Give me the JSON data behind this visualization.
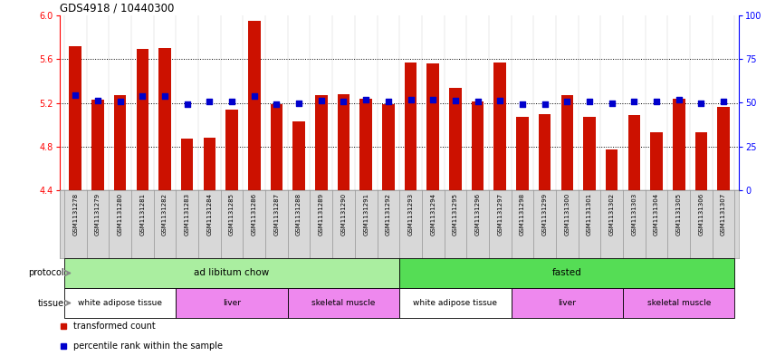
{
  "title": "GDS4918 / 10440300",
  "samples": [
    "GSM1131278",
    "GSM1131279",
    "GSM1131280",
    "GSM1131281",
    "GSM1131282",
    "GSM1131283",
    "GSM1131284",
    "GSM1131285",
    "GSM1131286",
    "GSM1131287",
    "GSM1131288",
    "GSM1131289",
    "GSM1131290",
    "GSM1131291",
    "GSM1131292",
    "GSM1131293",
    "GSM1131294",
    "GSM1131295",
    "GSM1131296",
    "GSM1131297",
    "GSM1131298",
    "GSM1131299",
    "GSM1131300",
    "GSM1131301",
    "GSM1131302",
    "GSM1131303",
    "GSM1131304",
    "GSM1131305",
    "GSM1131306",
    "GSM1131307"
  ],
  "bar_values": [
    5.72,
    5.23,
    5.27,
    5.69,
    5.7,
    4.87,
    4.88,
    5.14,
    5.95,
    5.19,
    5.03,
    5.27,
    5.28,
    5.24,
    5.19,
    5.57,
    5.56,
    5.34,
    5.21,
    5.57,
    5.07,
    5.1,
    5.27,
    5.07,
    4.77,
    5.09,
    4.93,
    5.24,
    4.93,
    5.16
  ],
  "blue_values": [
    5.27,
    5.22,
    5.21,
    5.26,
    5.26,
    5.19,
    5.21,
    5.21,
    5.26,
    5.19,
    5.2,
    5.22,
    5.21,
    5.23,
    5.21,
    5.23,
    5.23,
    5.22,
    5.21,
    5.22,
    5.19,
    5.19,
    5.21,
    5.21,
    5.2,
    5.21,
    5.21,
    5.23,
    5.2,
    5.21
  ],
  "ylim_left": [
    4.4,
    6.0
  ],
  "ylim_right": [
    0,
    100
  ],
  "yticks_left": [
    4.4,
    4.8,
    5.2,
    5.6,
    6.0
  ],
  "yticks_right": [
    0,
    25,
    50,
    75,
    100
  ],
  "bar_color": "#cc1100",
  "dot_color": "#0000cc",
  "xtick_bg": "#d8d8d8",
  "protocol_groups": [
    {
      "label": "ad libitum chow",
      "start": 0,
      "end": 14,
      "color": "#aaeea0"
    },
    {
      "label": "fasted",
      "start": 15,
      "end": 29,
      "color": "#55dd55"
    }
  ],
  "tissue_groups": [
    {
      "label": "white adipose tissue",
      "start": 0,
      "end": 4,
      "color": "#ffffff"
    },
    {
      "label": "liver",
      "start": 5,
      "end": 9,
      "color": "#ee88ee"
    },
    {
      "label": "skeletal muscle",
      "start": 10,
      "end": 14,
      "color": "#ee88ee"
    },
    {
      "label": "white adipose tissue",
      "start": 15,
      "end": 19,
      "color": "#ffffff"
    },
    {
      "label": "liver",
      "start": 20,
      "end": 24,
      "color": "#ee88ee"
    },
    {
      "label": "skeletal muscle",
      "start": 25,
      "end": 29,
      "color": "#ee88ee"
    }
  ],
  "legend_labels": [
    "transformed count",
    "percentile rank within the sample"
  ],
  "legend_colors": [
    "#cc1100",
    "#0000cc"
  ]
}
